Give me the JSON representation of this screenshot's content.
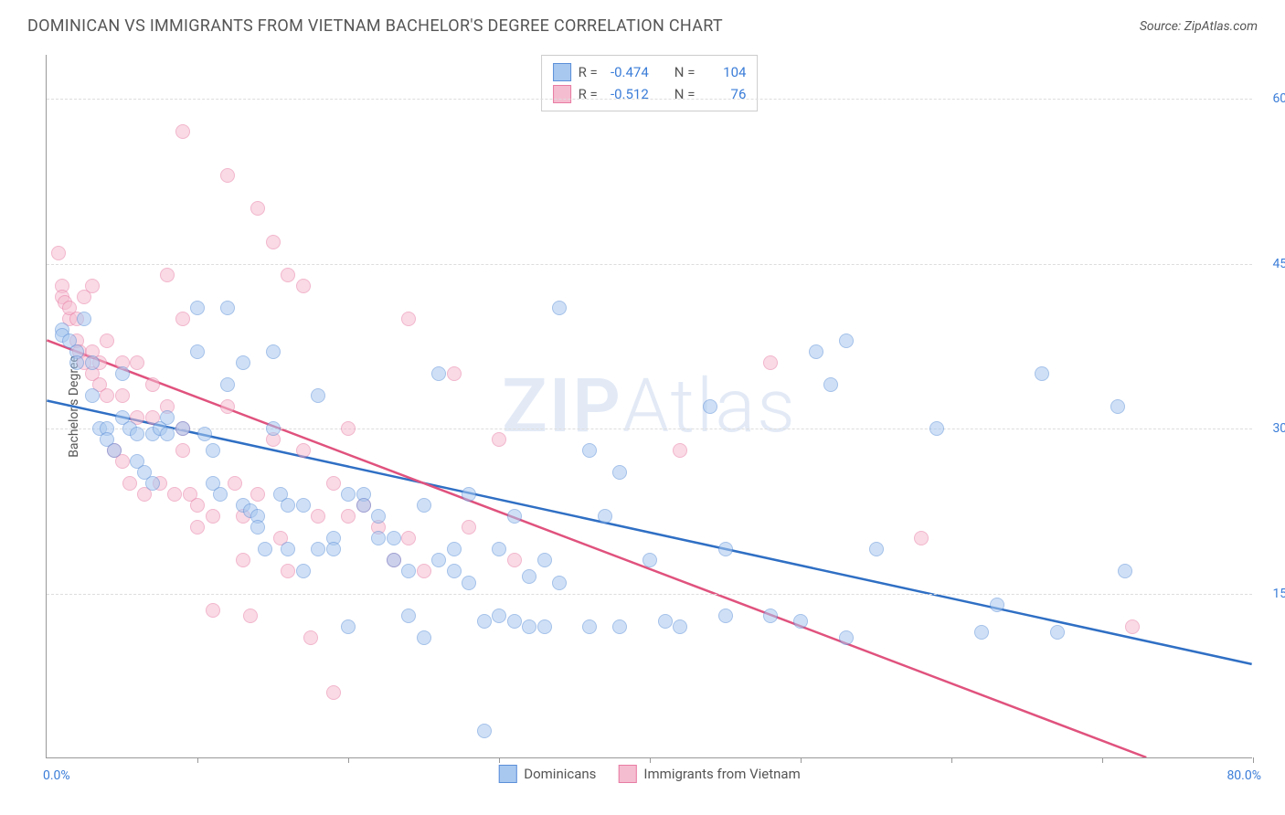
{
  "title": "DOMINICAN VS IMMIGRANTS FROM VIETNAM BACHELOR'S DEGREE CORRELATION CHART",
  "source_prefix": "Source: ",
  "source_name": "ZipAtlas.com",
  "y_axis_title": "Bachelor's Degree",
  "watermark_a": "ZIP",
  "watermark_b": "Atlas",
  "chart": {
    "type": "scatter",
    "xlim": [
      0,
      80
    ],
    "ylim": [
      0,
      64
    ],
    "x_ticks": [
      0,
      10,
      20,
      30,
      40,
      50,
      60,
      70,
      80
    ],
    "y_gridlines": [
      15,
      30,
      45,
      60
    ],
    "y_tick_labels": [
      "15.0%",
      "30.0%",
      "45.0%",
      "60.0%"
    ],
    "x_label_min": "0.0%",
    "x_label_max": "80.0%",
    "background_color": "#ffffff",
    "grid_color": "#dddddd",
    "axis_color": "#999999",
    "tick_label_color": "#3b7dd8",
    "marker_radius": 8,
    "marker_opacity": 0.55
  },
  "series": [
    {
      "name": "Dominicans",
      "fill": "#a8c8f0",
      "stroke": "#5b8fd8",
      "line_color": "#2f6fc4",
      "r_label": "R =",
      "r_value": "-0.474",
      "n_label": "N =",
      "n_value": "104",
      "trend": {
        "x1": 0,
        "y1": 32.5,
        "x2": 80,
        "y2": 8.5
      },
      "points": [
        [
          1,
          39
        ],
        [
          1,
          38.5
        ],
        [
          1.5,
          38
        ],
        [
          2,
          37
        ],
        [
          2,
          36
        ],
        [
          2.5,
          40
        ],
        [
          3,
          36
        ],
        [
          3,
          33
        ],
        [
          3.5,
          30
        ],
        [
          4,
          30
        ],
        [
          4,
          29
        ],
        [
          4.5,
          28
        ],
        [
          5,
          35
        ],
        [
          5,
          31
        ],
        [
          5.5,
          30
        ],
        [
          6,
          29.5
        ],
        [
          6,
          27
        ],
        [
          6.5,
          26
        ],
        [
          7,
          25
        ],
        [
          7,
          29.5
        ],
        [
          7.5,
          30
        ],
        [
          8,
          29.5
        ],
        [
          8,
          31
        ],
        [
          10,
          41
        ],
        [
          10,
          37
        ],
        [
          10.5,
          29.5
        ],
        [
          11,
          28
        ],
        [
          11,
          25
        ],
        [
          11.5,
          24
        ],
        [
          12,
          41
        ],
        [
          12,
          34
        ],
        [
          13,
          36
        ],
        [
          13,
          23
        ],
        [
          13.5,
          22.5
        ],
        [
          14,
          22
        ],
        [
          14,
          21
        ],
        [
          14.5,
          19
        ],
        [
          15,
          37
        ],
        [
          15,
          30
        ],
        [
          15.5,
          24
        ],
        [
          16,
          23
        ],
        [
          16,
          19
        ],
        [
          17,
          23
        ],
        [
          17,
          17
        ],
        [
          18,
          33
        ],
        [
          18,
          19
        ],
        [
          19,
          20
        ],
        [
          19,
          19
        ],
        [
          20,
          24
        ],
        [
          20,
          12
        ],
        [
          21,
          24
        ],
        [
          21,
          23
        ],
        [
          22,
          22
        ],
        [
          22,
          20
        ],
        [
          23,
          20
        ],
        [
          23,
          18
        ],
        [
          24,
          17
        ],
        [
          24,
          13
        ],
        [
          25,
          23
        ],
        [
          25,
          11
        ],
        [
          26,
          35
        ],
        [
          26,
          18
        ],
        [
          27,
          19
        ],
        [
          27,
          17
        ],
        [
          28,
          24
        ],
        [
          28,
          16
        ],
        [
          29,
          12.5
        ],
        [
          29,
          2.5
        ],
        [
          30,
          19
        ],
        [
          30,
          13
        ],
        [
          31,
          22
        ],
        [
          31,
          12.5
        ],
        [
          32,
          16.5
        ],
        [
          32,
          12
        ],
        [
          33,
          12
        ],
        [
          33,
          18
        ],
        [
          34,
          41
        ],
        [
          34,
          16
        ],
        [
          36,
          28
        ],
        [
          36,
          12
        ],
        [
          37,
          22
        ],
        [
          38,
          26
        ],
        [
          38,
          12
        ],
        [
          40,
          18
        ],
        [
          41,
          12.5
        ],
        [
          42,
          12
        ],
        [
          44,
          32
        ],
        [
          45,
          19
        ],
        [
          45,
          13
        ],
        [
          48,
          13
        ],
        [
          50,
          12.5
        ],
        [
          51,
          37
        ],
        [
          52,
          34
        ],
        [
          53,
          38
        ],
        [
          53,
          11
        ],
        [
          55,
          19
        ],
        [
          59,
          30
        ],
        [
          62,
          11.5
        ],
        [
          63,
          14
        ],
        [
          66,
          35
        ],
        [
          67,
          11.5
        ],
        [
          71,
          32
        ],
        [
          71.5,
          17
        ],
        [
          9,
          30
        ]
      ]
    },
    {
      "name": "Immigrants from Vietnam",
      "fill": "#f5bdd0",
      "stroke": "#e87ba3",
      "line_color": "#e0527e",
      "r_label": "R =",
      "r_value": "-0.512",
      "n_label": "N =",
      "n_value": "76",
      "trend": {
        "x1": 0,
        "y1": 38,
        "x2": 73,
        "y2": 0
      },
      "points": [
        [
          0.8,
          46
        ],
        [
          1,
          43
        ],
        [
          1,
          42
        ],
        [
          1.2,
          41.5
        ],
        [
          1.5,
          40
        ],
        [
          1.5,
          41
        ],
        [
          2,
          40
        ],
        [
          2,
          38
        ],
        [
          2.2,
          37
        ],
        [
          2.5,
          42
        ],
        [
          2.5,
          36
        ],
        [
          3,
          43
        ],
        [
          3,
          37
        ],
        [
          3,
          35
        ],
        [
          3.5,
          36
        ],
        [
          3.5,
          34
        ],
        [
          4,
          38
        ],
        [
          4,
          33
        ],
        [
          4.5,
          28
        ],
        [
          5,
          36
        ],
        [
          5,
          33
        ],
        [
          5,
          27
        ],
        [
          5.5,
          25
        ],
        [
          6,
          36
        ],
        [
          6,
          31
        ],
        [
          6.5,
          24
        ],
        [
          7,
          34
        ],
        [
          7,
          31
        ],
        [
          7.5,
          25
        ],
        [
          8,
          44
        ],
        [
          8,
          32
        ],
        [
          8.5,
          24
        ],
        [
          9,
          57
        ],
        [
          9,
          30
        ],
        [
          9,
          28
        ],
        [
          9.5,
          24
        ],
        [
          10,
          23
        ],
        [
          10,
          21
        ],
        [
          11,
          22
        ],
        [
          11,
          13.5
        ],
        [
          12,
          53
        ],
        [
          12,
          32
        ],
        [
          12.5,
          25
        ],
        [
          13,
          22
        ],
        [
          13,
          18
        ],
        [
          13.5,
          13
        ],
        [
          14,
          50
        ],
        [
          14,
          24
        ],
        [
          15,
          47
        ],
        [
          15,
          29
        ],
        [
          15.5,
          20
        ],
        [
          16,
          44
        ],
        [
          16,
          17
        ],
        [
          17,
          43
        ],
        [
          17,
          28
        ],
        [
          17.5,
          11
        ],
        [
          18,
          22
        ],
        [
          19,
          25
        ],
        [
          19,
          6
        ],
        [
          20,
          30
        ],
        [
          20,
          22
        ],
        [
          21,
          23
        ],
        [
          22,
          21
        ],
        [
          23,
          18
        ],
        [
          24,
          40
        ],
        [
          24,
          20
        ],
        [
          25,
          17
        ],
        [
          27,
          35
        ],
        [
          28,
          21
        ],
        [
          30,
          29
        ],
        [
          31,
          18
        ],
        [
          42,
          28
        ],
        [
          48,
          36
        ],
        [
          58,
          20
        ],
        [
          72,
          12
        ],
        [
          9,
          40
        ]
      ]
    }
  ],
  "legend": {
    "series1_label": "Dominicans",
    "series2_label": "Immigrants from Vietnam"
  }
}
